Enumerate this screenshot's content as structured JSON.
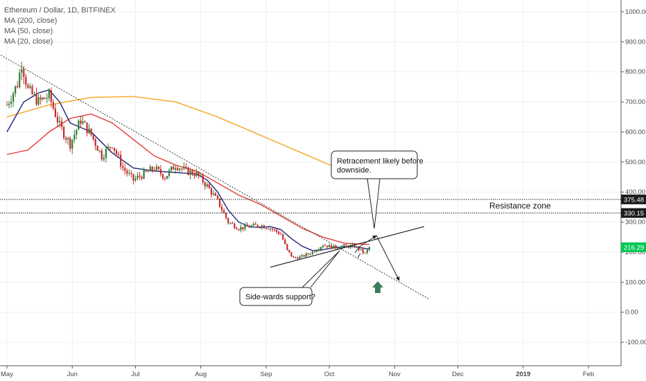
{
  "legend": {
    "title": "Ethereum / Dollar, 1D, BITFINEX",
    "ma200": "MA (200, close)",
    "ma50": "MA (50, close)",
    "ma20": "MA (20, close)"
  },
  "colors": {
    "up": "#2e7d32",
    "down": "#c62828",
    "ma200": "#f5a623",
    "ma50": "#e53935",
    "ma20": "#1a237e",
    "level_green": "#00c853",
    "arrow_green": "#3e7b5a"
  },
  "chart_data": {
    "type": "candlestick",
    "title": "Ethereum / Dollar, 1D, BITFINEX",
    "y_ticks": [
      "1000.00",
      "900.00",
      "800.00",
      "700.00",
      "600.00",
      "500.00",
      "400.00",
      "300.00",
      "200.00",
      "100.00",
      "0.00",
      "-100.00"
    ],
    "y_tick_values": [
      1000,
      900,
      800,
      700,
      600,
      500,
      400,
      300,
      200,
      100,
      0,
      -100
    ],
    "x_ticks": [
      "May",
      "Jun",
      "Jul",
      "Aug",
      "Sep",
      "Oct",
      "Nov",
      "Dec",
      "2019",
      "Feb"
    ],
    "x_tick_days": [
      0,
      31,
      61,
      92,
      123,
      153,
      184,
      214,
      245,
      276
    ],
    "ylim": [
      -180,
      1040
    ],
    "xlim": [
      0,
      296
    ],
    "price_labels": [
      {
        "text": "375.48",
        "value": 375.48,
        "style": "dark"
      },
      {
        "text": "330.15",
        "value": 330.15,
        "style": "dark"
      },
      {
        "text": "216.29",
        "value": 216.29,
        "style": "green"
      }
    ],
    "horizontal_lines": [
      375.48,
      330.15
    ],
    "anchors": [
      [
        0,
        690
      ],
      [
        5,
        760
      ],
      [
        7,
        830
      ],
      [
        10,
        740
      ],
      [
        15,
        700
      ],
      [
        20,
        720
      ],
      [
        25,
        620
      ],
      [
        30,
        560
      ],
      [
        35,
        640
      ],
      [
        40,
        590
      ],
      [
        45,
        520
      ],
      [
        50,
        560
      ],
      [
        55,
        480
      ],
      [
        60,
        440
      ],
      [
        65,
        460
      ],
      [
        70,
        480
      ],
      [
        75,
        450
      ],
      [
        80,
        490
      ],
      [
        85,
        470
      ],
      [
        90,
        460
      ],
      [
        95,
        420
      ],
      [
        100,
        370
      ],
      [
        105,
        300
      ],
      [
        110,
        280
      ],
      [
        115,
        285
      ],
      [
        120,
        290
      ],
      [
        125,
        280
      ],
      [
        130,
        260
      ],
      [
        133,
        205
      ],
      [
        136,
        180
      ],
      [
        140,
        185
      ],
      [
        145,
        200
      ],
      [
        150,
        225
      ],
      [
        155,
        215
      ],
      [
        160,
        220
      ],
      [
        165,
        220
      ],
      [
        168,
        205
      ],
      [
        170,
        195
      ],
      [
        172,
        216
      ]
    ],
    "ma200": [
      [
        0,
        650
      ],
      [
        20,
        690
      ],
      [
        40,
        715
      ],
      [
        60,
        718
      ],
      [
        80,
        700
      ],
      [
        100,
        650
      ],
      [
        120,
        590
      ],
      [
        140,
        530
      ],
      [
        160,
        470
      ],
      [
        172,
        440
      ]
    ],
    "ma50": [
      [
        0,
        525
      ],
      [
        10,
        540
      ],
      [
        20,
        600
      ],
      [
        30,
        645
      ],
      [
        40,
        660
      ],
      [
        50,
        630
      ],
      [
        60,
        575
      ],
      [
        70,
        520
      ],
      [
        80,
        490
      ],
      [
        90,
        470
      ],
      [
        100,
        430
      ],
      [
        110,
        390
      ],
      [
        120,
        360
      ],
      [
        130,
        320
      ],
      [
        140,
        280
      ],
      [
        150,
        250
      ],
      [
        160,
        230
      ],
      [
        172,
        225
      ]
    ],
    "ma20": [
      [
        0,
        600
      ],
      [
        8,
        700
      ],
      [
        15,
        730
      ],
      [
        20,
        740
      ],
      [
        25,
        700
      ],
      [
        30,
        630
      ],
      [
        40,
        600
      ],
      [
        50,
        530
      ],
      [
        60,
        480
      ],
      [
        70,
        470
      ],
      [
        80,
        465
      ],
      [
        90,
        460
      ],
      [
        95,
        440
      ],
      [
        100,
        400
      ],
      [
        105,
        340
      ],
      [
        110,
        300
      ],
      [
        115,
        285
      ],
      [
        120,
        282
      ],
      [
        125,
        285
      ],
      [
        130,
        275
      ],
      [
        135,
        245
      ],
      [
        140,
        220
      ],
      [
        145,
        205
      ],
      [
        150,
        208
      ],
      [
        155,
        215
      ],
      [
        160,
        218
      ],
      [
        165,
        218
      ],
      [
        172,
        210
      ]
    ],
    "trendline_downtrend": [
      [
        -4,
        860
      ],
      [
        200,
        45
      ]
    ],
    "trendline_support": [
      [
        125,
        150
      ],
      [
        198,
        285
      ]
    ]
  },
  "annotations": {
    "resistance": "Resistance zone",
    "retracement_line1": "Retracement likely before",
    "retracement_line2": "downside.",
    "support": "Side-wards support?"
  }
}
